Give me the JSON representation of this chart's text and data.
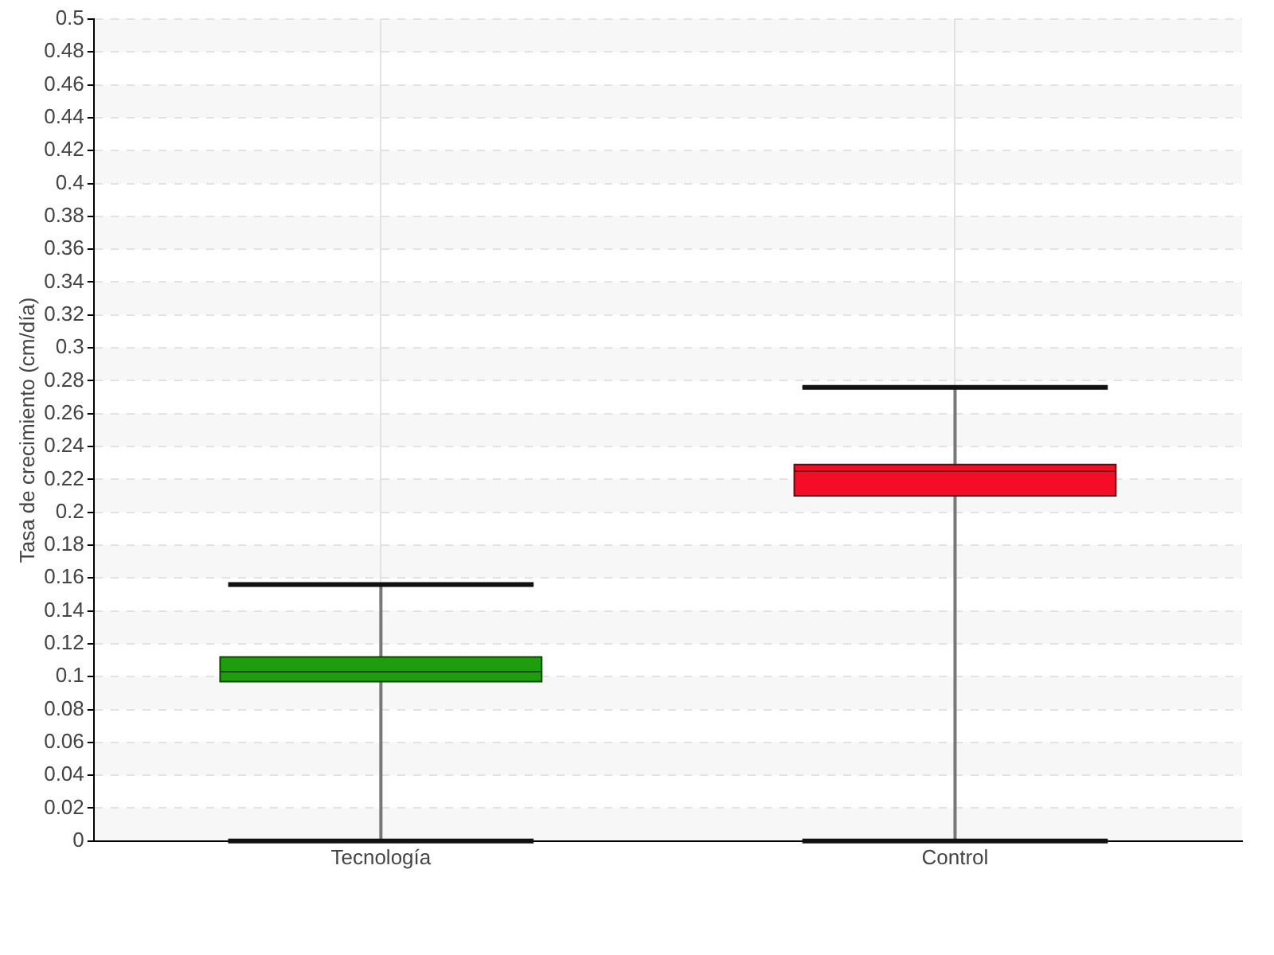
{
  "chart_data": {
    "type": "box",
    "ylabel": "Tasa de crecimiento (cm/día)",
    "categories": [
      "Tecnología",
      "Control"
    ],
    "colors": [
      "#1e9e0c",
      "#f50d27"
    ],
    "boxes": [
      {
        "low": 0,
        "q1": 0.097,
        "median": 0.103,
        "q3": 0.112,
        "high": 0.156
      },
      {
        "low": 0,
        "q1": 0.21,
        "median": 0.225,
        "q3": 0.229,
        "high": 0.276
      }
    ],
    "ylim": [
      0,
      0.5
    ],
    "yticks": [
      0,
      0.02,
      0.04,
      0.06,
      0.08,
      0.1,
      0.12,
      0.14,
      0.16,
      0.18,
      0.2,
      0.22,
      0.24,
      0.26,
      0.28,
      0.3,
      0.32,
      0.34,
      0.36,
      0.38,
      0.4,
      0.42,
      0.44,
      0.46,
      0.48,
      0.5
    ],
    "grid": true,
    "legend": false
  }
}
